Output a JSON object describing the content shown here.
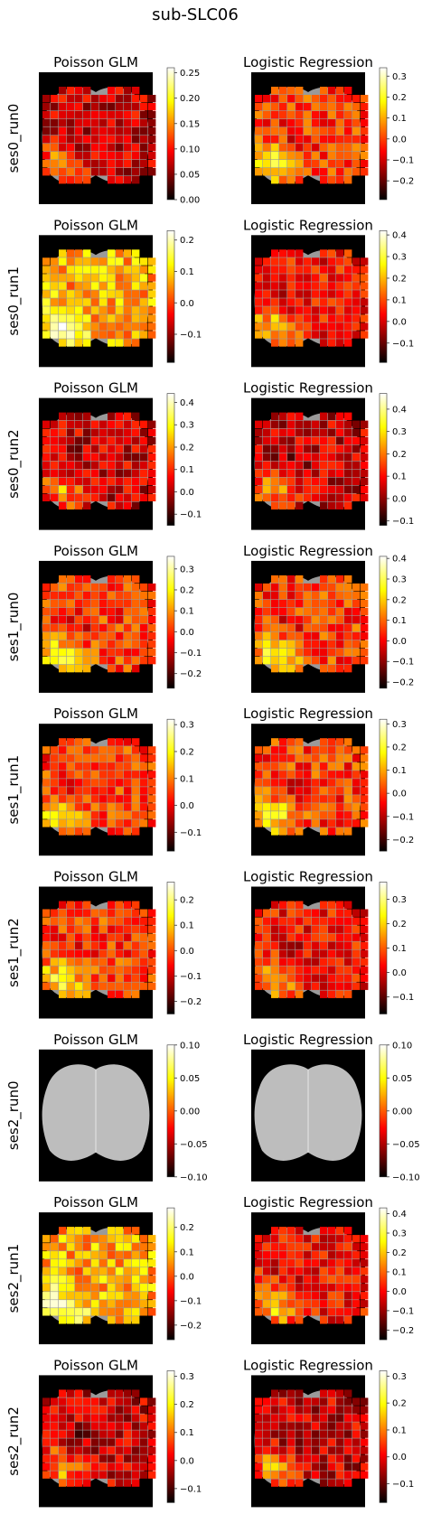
{
  "figure_title": "sub-SLC06",
  "column_titles": [
    "Poisson GLM",
    "Logistic Regression"
  ],
  "chart_data": {
    "type": "heatmap",
    "colormap": "hot",
    "title": "sub-SLC06",
    "rows": [
      "ses0_run0",
      "ses0_run1",
      "ses0_run2",
      "ses1_run0",
      "ses1_run1",
      "ses1_run2",
      "ses2_run0",
      "ses2_run1",
      "ses2_run2"
    ],
    "columns": [
      "Poisson GLM",
      "Logistic Regression"
    ],
    "panels": [
      {
        "row": "ses0_run0",
        "model": "Poisson GLM",
        "vmin": 0,
        "vmax": 0.26,
        "ticks": [
          "0.00",
          "0.05",
          "0.10",
          "0.15",
          "0.20",
          "0.25"
        ],
        "pattern": "dark",
        "all_gray": false
      },
      {
        "row": "ses0_run0",
        "model": "Logistic Regression",
        "vmin": -0.29,
        "vmax": 0.34,
        "ticks": [
          "−0.2",
          "−0.1",
          "0.0",
          "0.1",
          "0.2",
          "0.3"
        ],
        "pattern": "mid",
        "all_gray": false
      },
      {
        "row": "ses0_run1",
        "model": "Poisson GLM",
        "vmin": -0.19,
        "vmax": 0.23,
        "ticks": [
          "−0.1",
          "0.0",
          "0.1",
          "0.2"
        ],
        "pattern": "bright",
        "all_gray": false
      },
      {
        "row": "ses0_run1",
        "model": "Logistic Regression",
        "vmin": -0.19,
        "vmax": 0.42,
        "ticks": [
          "−0.1",
          "0.0",
          "0.1",
          "0.2",
          "0.3",
          "0.4"
        ],
        "pattern": "midlow",
        "all_gray": false
      },
      {
        "row": "ses0_run2",
        "model": "Poisson GLM",
        "vmin": -0.15,
        "vmax": 0.44,
        "ticks": [
          "−0.1",
          "0.0",
          "0.1",
          "0.2",
          "0.3",
          "0.4"
        ],
        "pattern": "dark",
        "all_gray": false
      },
      {
        "row": "ses0_run2",
        "model": "Logistic Regression",
        "vmin": -0.12,
        "vmax": 0.47,
        "ticks": [
          "−0.1",
          "0.0",
          "0.1",
          "0.2",
          "0.3",
          "0.4"
        ],
        "pattern": "dark",
        "all_gray": false
      },
      {
        "row": "ses1_run0",
        "model": "Poisson GLM",
        "vmin": -0.27,
        "vmax": 0.36,
        "ticks": [
          "−0.2",
          "−0.1",
          "0.0",
          "0.1",
          "0.2",
          "0.3"
        ],
        "pattern": "mid",
        "all_gray": false
      },
      {
        "row": "ses1_run0",
        "model": "Logistic Regression",
        "vmin": -0.23,
        "vmax": 0.41,
        "ticks": [
          "−0.2",
          "−0.1",
          "0.0",
          "0.1",
          "0.2",
          "0.3",
          "0.4"
        ],
        "pattern": "mid",
        "all_gray": false
      },
      {
        "row": "ses1_run1",
        "model": "Poisson GLM",
        "vmin": -0.17,
        "vmax": 0.32,
        "ticks": [
          "−0.1",
          "0.0",
          "0.1",
          "0.2",
          "0.3"
        ],
        "pattern": "mid",
        "all_gray": false
      },
      {
        "row": "ses1_run1",
        "model": "Logistic Regression",
        "vmin": -0.25,
        "vmax": 0.32,
        "ticks": [
          "−0.2",
          "−0.1",
          "0.0",
          "0.1",
          "0.2",
          "0.3"
        ],
        "pattern": "mid",
        "all_gray": false
      },
      {
        "row": "ses1_run2",
        "model": "Poisson GLM",
        "vmin": -0.25,
        "vmax": 0.27,
        "ticks": [
          "−0.2",
          "−0.1",
          "0.0",
          "0.1",
          "0.2"
        ],
        "pattern": "mid",
        "all_gray": false
      },
      {
        "row": "ses1_run2",
        "model": "Logistic Regression",
        "vmin": -0.17,
        "vmax": 0.37,
        "ticks": [
          "−0.1",
          "0.0",
          "0.1",
          "0.2",
          "0.3"
        ],
        "pattern": "midlow",
        "all_gray": false
      },
      {
        "row": "ses2_run0",
        "model": "Poisson GLM",
        "vmin": -0.1,
        "vmax": 0.1,
        "ticks": [
          "−0.10",
          "−0.05",
          "0.00",
          "0.05",
          "0.10"
        ],
        "pattern": "gray",
        "all_gray": true
      },
      {
        "row": "ses2_run0",
        "model": "Logistic Regression",
        "vmin": -0.1,
        "vmax": 0.1,
        "ticks": [
          "−0.10",
          "−0.05",
          "0.00",
          "0.05",
          "0.10"
        ],
        "pattern": "gray",
        "all_gray": true
      },
      {
        "row": "ses2_run1",
        "model": "Poisson GLM",
        "vmin": -0.26,
        "vmax": 0.28,
        "ticks": [
          "−0.2",
          "−0.1",
          "0.0",
          "0.1",
          "0.2"
        ],
        "pattern": "bright",
        "all_gray": false
      },
      {
        "row": "ses2_run1",
        "model": "Logistic Regression",
        "vmin": -0.25,
        "vmax": 0.43,
        "ticks": [
          "−0.2",
          "−0.1",
          "0.0",
          "0.1",
          "0.2",
          "0.3",
          "0.4"
        ],
        "pattern": "midlow",
        "all_gray": false
      },
      {
        "row": "ses2_run2",
        "model": "Poisson GLM",
        "vmin": -0.15,
        "vmax": 0.32,
        "ticks": [
          "−0.1",
          "0.0",
          "0.1",
          "0.2",
          "0.3"
        ],
        "pattern": "dark",
        "all_gray": false
      },
      {
        "row": "ses2_run2",
        "model": "Logistic Regression",
        "vmin": -0.17,
        "vmax": 0.32,
        "ticks": [
          "−0.1",
          "0.0",
          "0.1",
          "0.2",
          "0.3"
        ],
        "pattern": "dark",
        "all_gray": false
      }
    ]
  }
}
